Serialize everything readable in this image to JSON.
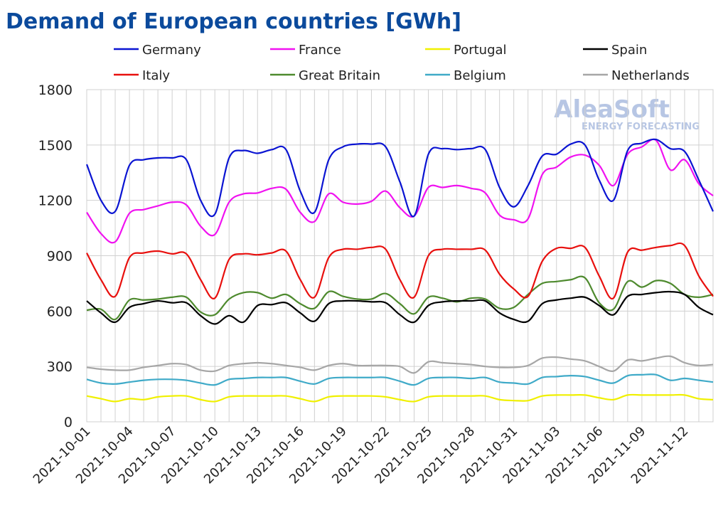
{
  "chart_data": {
    "type": "line",
    "title": "Demand of European countries [GWh]",
    "watermark": [
      "AleaSoft",
      "ENERGY FORECASTING"
    ],
    "categories": [
      "2021-10-01",
      null,
      null,
      "2021-10-04",
      null,
      null,
      "2021-10-07",
      null,
      null,
      "2021-10-10",
      null,
      null,
      "2021-10-13",
      null,
      null,
      "2021-10-16",
      null,
      null,
      "2021-10-19",
      null,
      null,
      "2021-10-22",
      null,
      null,
      "2021-10-25",
      null,
      null,
      "2021-10-28",
      null,
      null,
      "2021-10-31",
      null,
      null,
      "2021-11-03",
      null,
      null,
      "2021-11-06",
      null,
      null,
      "2021-11-09",
      null,
      null,
      "2021-11-12",
      null,
      null
    ],
    "ylim": [
      0,
      1800
    ],
    "yticks": [
      0,
      300,
      600,
      900,
      1200,
      1500,
      1800
    ],
    "grid": true,
    "series": [
      {
        "name": "Germany",
        "color": "#0a14d2",
        "values": [
          1395,
          1200,
          1140,
          1390,
          1420,
          1430,
          1430,
          1420,
          1200,
          1125,
          1430,
          1470,
          1455,
          1475,
          1475,
          1250,
          1135,
          1420,
          1490,
          1505,
          1505,
          1490,
          1300,
          1115,
          1450,
          1480,
          1475,
          1480,
          1475,
          1270,
          1165,
          1280,
          1440,
          1450,
          1505,
          1500,
          1310,
          1200,
          1470,
          1510,
          1530,
          1480,
          1465,
          1310,
          1140
        ]
      },
      {
        "name": "France",
        "color": "#f012f0",
        "values": [
          1135,
          1020,
          975,
          1130,
          1150,
          1170,
          1190,
          1175,
          1060,
          1015,
          1190,
          1235,
          1240,
          1265,
          1260,
          1135,
          1085,
          1235,
          1190,
          1180,
          1195,
          1250,
          1160,
          1115,
          1270,
          1270,
          1280,
          1265,
          1240,
          1120,
          1095,
          1100,
          1340,
          1380,
          1435,
          1445,
          1390,
          1280,
          1450,
          1490,
          1525,
          1365,
          1420,
          1290,
          1225
        ]
      },
      {
        "name": "Portugal",
        "color": "#f0f000",
        "values": [
          140,
          125,
          110,
          125,
          120,
          135,
          140,
          140,
          120,
          110,
          135,
          140,
          140,
          140,
          140,
          125,
          110,
          135,
          140,
          140,
          140,
          135,
          120,
          110,
          135,
          140,
          140,
          140,
          140,
          120,
          115,
          115,
          140,
          145,
          145,
          145,
          130,
          120,
          145,
          145,
          145,
          145,
          145,
          125,
          120
        ]
      },
      {
        "name": "Spain",
        "color": "#000000",
        "values": [
          655,
          590,
          540,
          620,
          640,
          655,
          645,
          645,
          575,
          530,
          575,
          540,
          630,
          635,
          645,
          590,
          545,
          640,
          655,
          655,
          650,
          645,
          580,
          540,
          630,
          650,
          655,
          655,
          655,
          590,
          555,
          545,
          640,
          660,
          670,
          675,
          630,
          580,
          680,
          690,
          700,
          705,
          690,
          620,
          580
        ]
      },
      {
        "name": "Italy",
        "color": "#e8100e",
        "values": [
          915,
          770,
          680,
          890,
          915,
          925,
          910,
          910,
          770,
          670,
          880,
          910,
          905,
          915,
          925,
          770,
          675,
          890,
          935,
          935,
          945,
          935,
          770,
          675,
          900,
          935,
          935,
          935,
          930,
          800,
          720,
          680,
          870,
          940,
          940,
          945,
          790,
          670,
          920,
          930,
          945,
          955,
          955,
          790,
          680
        ]
      },
      {
        "name": "Great Britain",
        "color": "#4e8a2e",
        "values": [
          605,
          610,
          555,
          660,
          660,
          665,
          675,
          675,
          595,
          580,
          665,
          700,
          700,
          670,
          690,
          640,
          615,
          705,
          680,
          665,
          665,
          695,
          640,
          585,
          675,
          670,
          650,
          670,
          665,
          615,
          620,
          690,
          750,
          760,
          770,
          780,
          645,
          610,
          760,
          730,
          765,
          750,
          690,
          675,
          690
        ]
      },
      {
        "name": "Belgium",
        "color": "#3faac8",
        "values": [
          230,
          210,
          205,
          215,
          225,
          230,
          230,
          225,
          210,
          200,
          230,
          235,
          240,
          240,
          240,
          220,
          205,
          235,
          240,
          240,
          240,
          240,
          220,
          200,
          235,
          240,
          240,
          235,
          240,
          215,
          210,
          205,
          240,
          245,
          250,
          245,
          225,
          210,
          250,
          255,
          255,
          225,
          235,
          225,
          215
        ]
      },
      {
        "name": "Netherlands",
        "color": "#a6a6a6",
        "values": [
          295,
          285,
          280,
          280,
          295,
          305,
          315,
          310,
          280,
          275,
          305,
          315,
          320,
          315,
          305,
          295,
          280,
          305,
          315,
          305,
          305,
          305,
          300,
          265,
          325,
          320,
          315,
          310,
          300,
          295,
          295,
          305,
          345,
          350,
          340,
          330,
          300,
          275,
          335,
          330,
          345,
          355,
          320,
          305,
          310
        ]
      }
    ]
  }
}
